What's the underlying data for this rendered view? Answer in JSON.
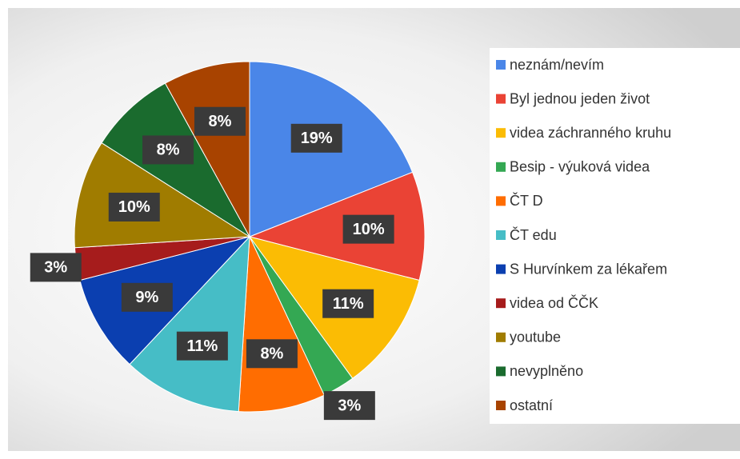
{
  "chart_data": {
    "type": "pie",
    "categories": [
      "neznám/nevím",
      "Byl jednou jeden život",
      "videa záchranného kruhu",
      "Besip - výuková videa",
      "ČT D",
      "ČT edu",
      "S Hurvínkem za lékařem",
      "videa od ČČK",
      "youtube",
      "nevyplněno",
      "ostatní"
    ],
    "values": [
      19,
      10,
      11,
      3,
      8,
      11,
      9,
      3,
      10,
      8,
      8
    ],
    "value_labels": [
      "19%",
      "10%",
      "11%",
      "3%",
      "8%",
      "11%",
      "9%",
      "3%",
      "10%",
      "8%",
      "8%"
    ],
    "colors": [
      "#4a86e8",
      "#ea4335",
      "#fbbc04",
      "#34a853",
      "#ff6d01",
      "#46bdc6",
      "#0b3fb0",
      "#a61c1c",
      "#a07c00",
      "#1a6b2e",
      "#a84300"
    ],
    "legend": "right"
  }
}
